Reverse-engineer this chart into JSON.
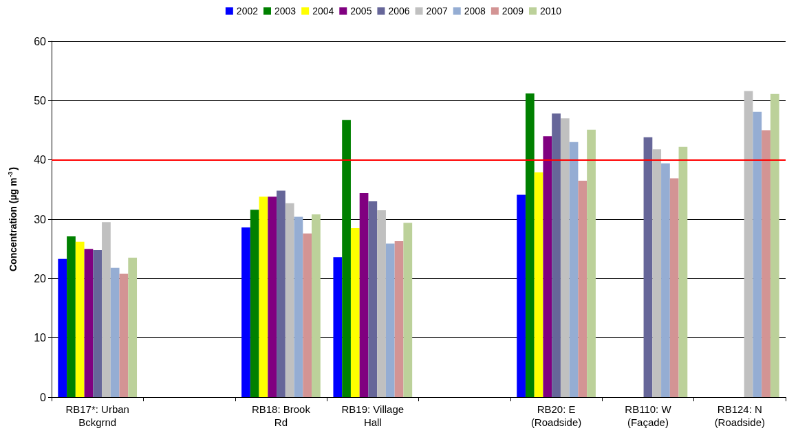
{
  "chart_data": {
    "type": "bar",
    "ylabel": "Concentration (µg m$^{-3}$)",
    "categories": [
      "RB17*: Urban\nBckgrnd",
      null,
      "RB18: Brook\nRd",
      "RB19: Village\nHall",
      null,
      "RB20: E\n(Roadside)",
      "RB110: W\n(Façade)",
      "RB124: N\n(Roadside)"
    ],
    "series": [
      {
        "name": "2002",
        "color": "#0000ff",
        "values": [
          23.3,
          null,
          28.6,
          23.6,
          null,
          34.1,
          null,
          null
        ]
      },
      {
        "name": "2003",
        "color": "#008000",
        "values": [
          27.1,
          null,
          31.6,
          46.7,
          null,
          51.2,
          null,
          null
        ]
      },
      {
        "name": "2004",
        "color": "#ffff00",
        "values": [
          26.2,
          null,
          33.8,
          28.5,
          null,
          37.9,
          null,
          null
        ]
      },
      {
        "name": "2005",
        "color": "#800080",
        "values": [
          25.0,
          null,
          33.8,
          34.4,
          null,
          44.0,
          null,
          null
        ]
      },
      {
        "name": "2006",
        "color": "#666699",
        "values": [
          24.8,
          null,
          34.8,
          33.0,
          null,
          47.8,
          43.8,
          null
        ]
      },
      {
        "name": "2007",
        "color": "#c0c0c0",
        "values": [
          29.5,
          null,
          32.7,
          31.5,
          null,
          47.0,
          41.8,
          51.6
        ]
      },
      {
        "name": "2008",
        "color": "#95add3",
        "values": [
          21.8,
          null,
          30.4,
          25.9,
          null,
          43.0,
          39.4,
          48.1
        ]
      },
      {
        "name": "2009",
        "color": "#d39494",
        "values": [
          20.8,
          null,
          27.6,
          26.3,
          null,
          36.5,
          36.9,
          45.0
        ]
      },
      {
        "name": "2010",
        "color": "#bcd19a",
        "values": [
          23.5,
          null,
          30.8,
          29.4,
          null,
          45.1,
          42.2,
          51.1
        ]
      }
    ],
    "ylim": [
      0,
      60
    ],
    "yticks": [
      0,
      10,
      20,
      30,
      40,
      50,
      60
    ],
    "grid": "y",
    "legend": "top",
    "ref_lines": [
      {
        "axis": "y",
        "value": 40,
        "color": "#ff0000"
      }
    ]
  }
}
